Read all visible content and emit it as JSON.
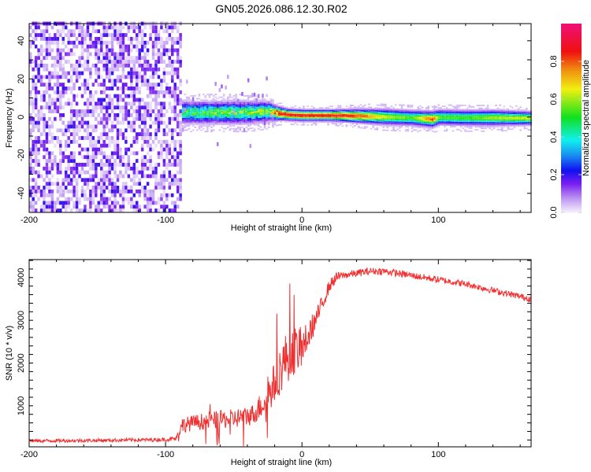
{
  "chart_data": [
    {
      "type": "heatmap",
      "title": "GN05.2026.086.12.30.R02",
      "xlabel": "Height of straight line (km)",
      "ylabel": "Frequency (Hz)",
      "xlim": [
        -200,
        168
      ],
      "ylim": [
        -50,
        49
      ],
      "xticks": [
        "-200",
        "-100",
        "0",
        "100"
      ],
      "yticks": [
        "40",
        "20",
        "0",
        "-20",
        "-40"
      ],
      "colorbar": {
        "label": "Normalized spectral amplitude",
        "range": [
          0,
          1
        ],
        "ticks": [
          "0.0",
          "0.2",
          "0.4",
          "0.6",
          "0.8"
        ],
        "stops": [
          {
            "v": 0.0,
            "c": "#f4eefc"
          },
          {
            "v": 0.08,
            "c": "#b58af0"
          },
          {
            "v": 0.15,
            "c": "#7a1ef0"
          },
          {
            "v": 0.22,
            "c": "#1010f0"
          },
          {
            "v": 0.3,
            "c": "#1a8ef0"
          },
          {
            "v": 0.38,
            "c": "#10f0f0"
          },
          {
            "v": 0.5,
            "c": "#10e020"
          },
          {
            "v": 0.65,
            "c": "#f0f010"
          },
          {
            "v": 0.75,
            "c": "#f09010"
          },
          {
            "v": 0.85,
            "c": "#f01010"
          },
          {
            "v": 1.0,
            "c": "#f0107a"
          }
        ]
      },
      "noise_region": {
        "x_range": [
          -200,
          -88
        ],
        "amplitude_range": [
          0.0,
          0.2
        ]
      },
      "signal_band": {
        "x": [
          -88,
          -60,
          -40,
          -25,
          -18,
          -10,
          0,
          20,
          40,
          60,
          80,
          95,
          100,
          120,
          140,
          168
        ],
        "center_hz": [
          2,
          2,
          2,
          2.5,
          1.5,
          0.8,
          0.5,
          0.5,
          0.2,
          -0.3,
          -0.8,
          -1.5,
          -0.5,
          -0.8,
          -0.8,
          -1
        ],
        "half_width_hz": [
          5,
          5,
          5,
          4.5,
          3,
          2.5,
          2.5,
          2.5,
          3,
          3.5,
          3.5,
          3.5,
          3.5,
          3.5,
          3.5,
          3
        ],
        "peak_amplitude": [
          0.5,
          0.55,
          0.55,
          0.6,
          0.9,
          0.92,
          0.92,
          0.92,
          0.85,
          0.65,
          0.55,
          0.85,
          0.55,
          0.55,
          0.62,
          0.65
        ]
      }
    },
    {
      "type": "line",
      "xlabel": "Height of straight line (km)",
      "ylabel": "SNR (10 * v/v)",
      "xlim": [
        -200,
        168
      ],
      "ylim": [
        40,
        4420
      ],
      "xticks": [
        "-200",
        "-100",
        "0",
        "100"
      ],
      "yticks": [
        "1000",
        "2000",
        "3000",
        "4000"
      ],
      "series": [
        {
          "name": "SNR",
          "color": "#f03030",
          "x": [
            -200,
            -150,
            -100,
            -92,
            -88,
            -70,
            -50,
            -35,
            -28,
            -22,
            -18,
            -12,
            -5,
            0,
            5,
            10,
            15,
            20,
            25,
            30,
            40,
            50,
            60,
            80,
            100,
            120,
            140,
            168
          ],
          "mean": [
            180,
            190,
            210,
            230,
            550,
            650,
            700,
            800,
            1100,
            1400,
            1700,
            2100,
            2300,
            2300,
            2700,
            3000,
            3400,
            3800,
            4000,
            4050,
            4100,
            4150,
            4150,
            4050,
            3950,
            3850,
            3700,
            3500
          ],
          "spread": [
            80,
            80,
            90,
            120,
            350,
            400,
            450,
            500,
            700,
            900,
            1100,
            1200,
            1100,
            900,
            700,
            500,
            400,
            300,
            250,
            180,
            170,
            170,
            170,
            160,
            160,
            150,
            150,
            150
          ]
        }
      ]
    }
  ]
}
